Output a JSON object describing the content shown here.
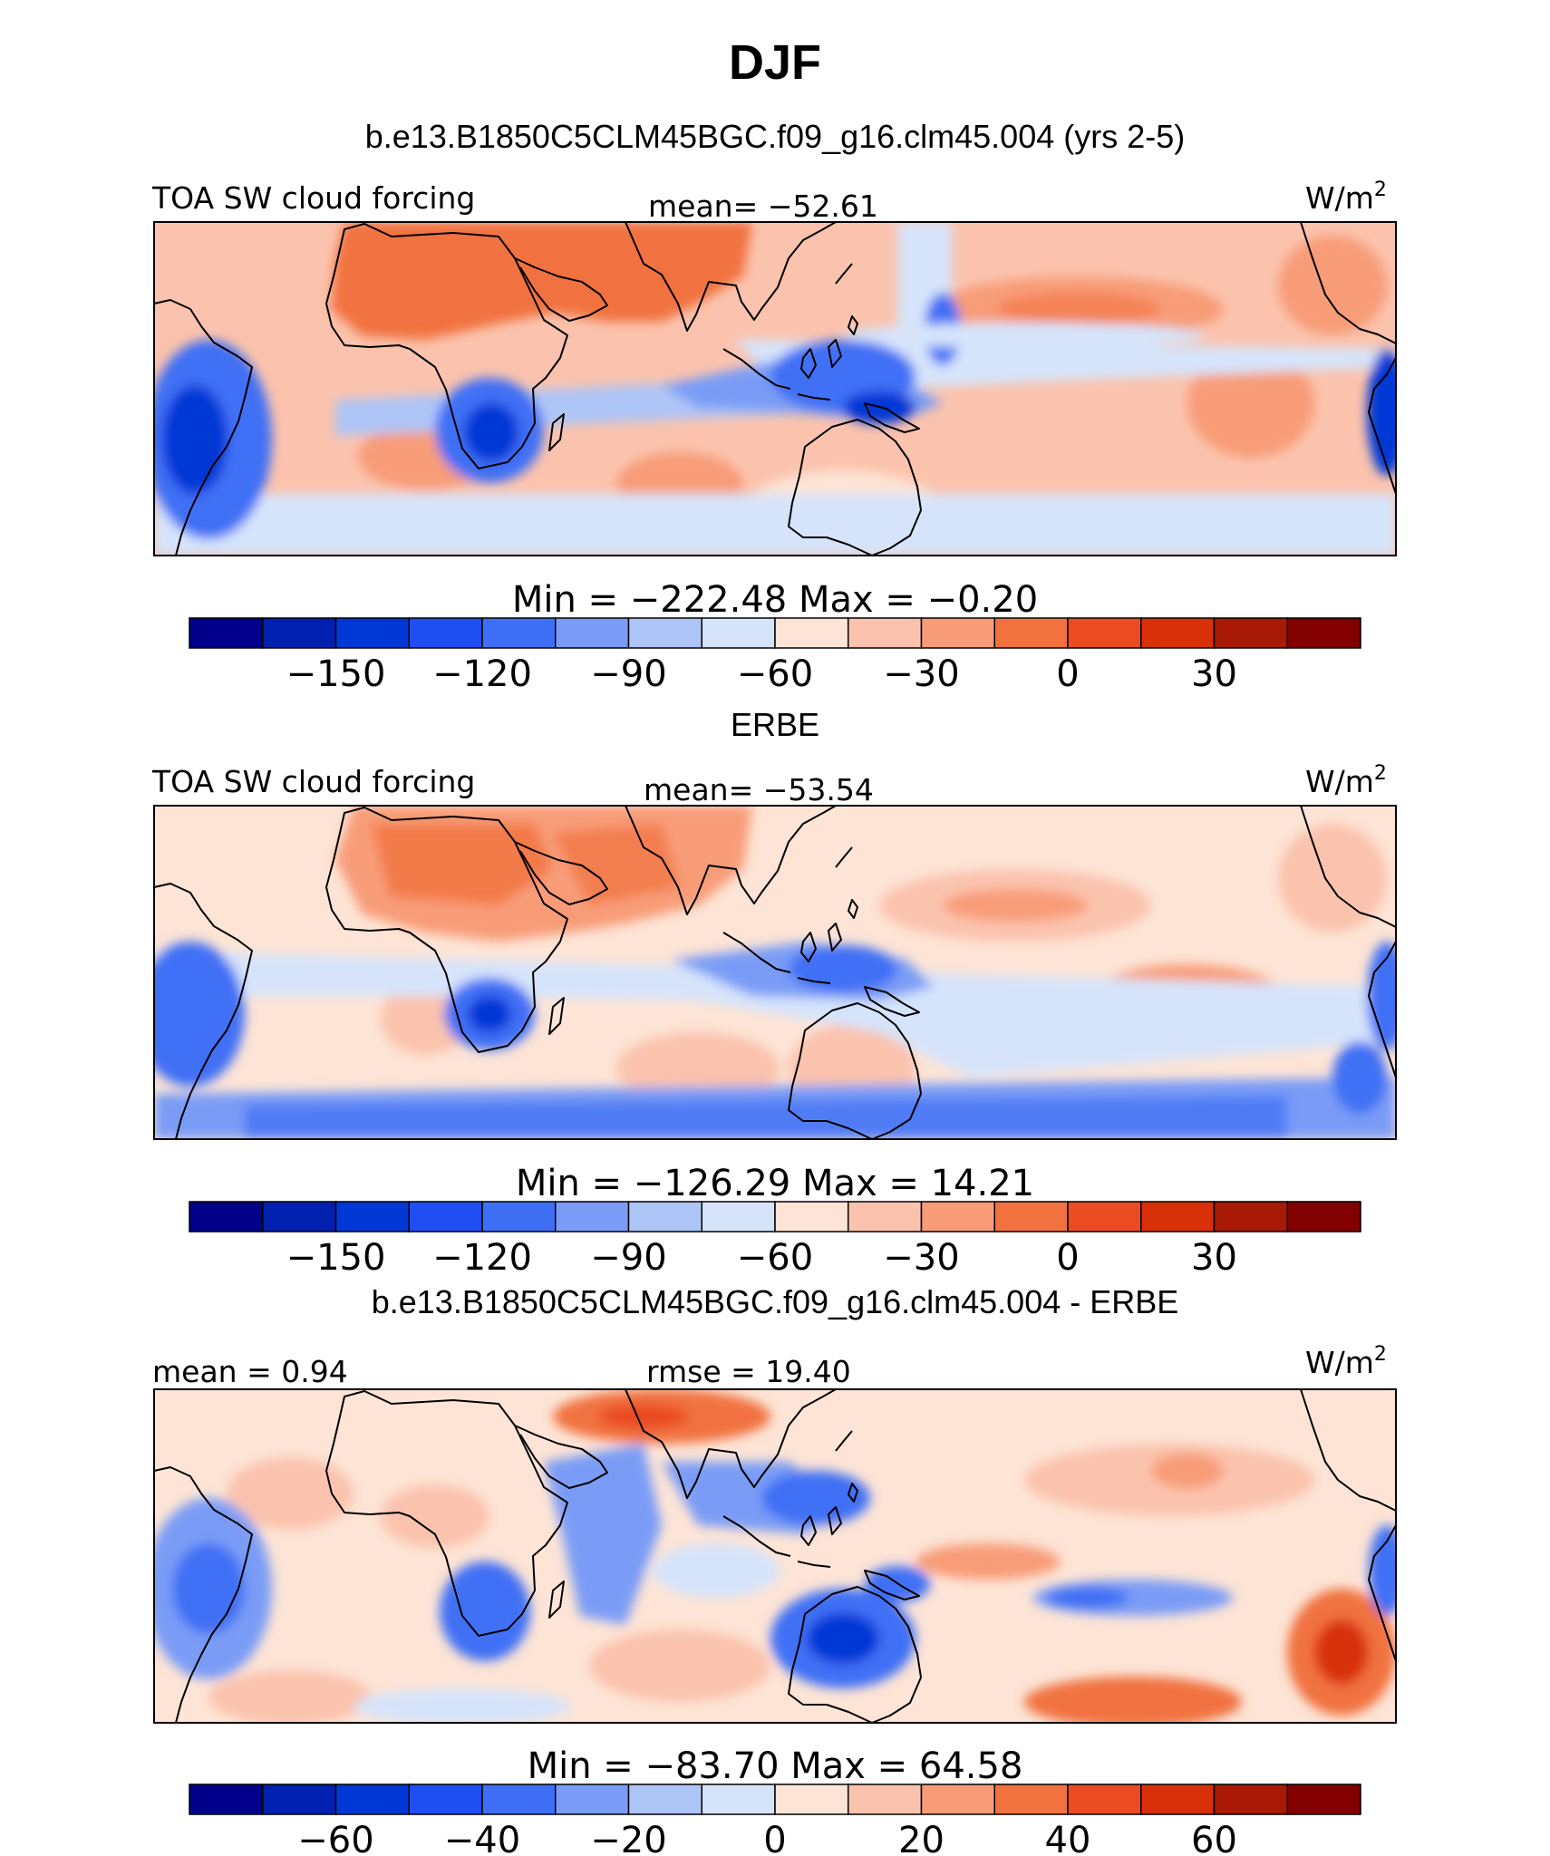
{
  "figure": {
    "season": "DJF",
    "units": "W/m",
    "units_superscript": "2"
  },
  "panels": [
    {
      "id": "model",
      "heading": "b.e13.B1850C5CLM45BGC.f09_g16.clm45.004 (yrs 2-5)",
      "left_label": "TOA SW cloud forcing",
      "center_label": "mean= −52.61",
      "minmax": "Min = −222.48 Max =  −0.20"
    },
    {
      "id": "obs",
      "heading": "ERBE",
      "left_label": "TOA SW cloud forcing",
      "center_label": "mean= −53.54",
      "minmax": "Min = −126.29 Max =  14.21"
    },
    {
      "id": "diff",
      "heading": "b.e13.B1850C5CLM45BGC.f09_g16.clm45.004 - ERBE",
      "left_label": "mean =   0.94",
      "center_label": "rmse =  19.40",
      "minmax": "Min = −83.70 Max =  64.58"
    }
  ],
  "colorbars": [
    {
      "colors": [
        "#00008b",
        "#0020b0",
        "#0038d6",
        "#1f4ef3",
        "#3f6ff5",
        "#7a9cf6",
        "#aec5f7",
        "#d6e4fb",
        "#fde4d6",
        "#fbc3ad",
        "#f89c78",
        "#f1723f",
        "#ea4b20",
        "#d83009",
        "#a81a05",
        "#820000"
      ],
      "ticks": [
        {
          "boundary": 2,
          "label": "−150"
        },
        {
          "boundary": 4,
          "label": "−120"
        },
        {
          "boundary": 6,
          "label": "−90"
        },
        {
          "boundary": 8,
          "label": "−60"
        },
        {
          "boundary": 10,
          "label": "−30"
        },
        {
          "boundary": 12,
          "label": "0"
        },
        {
          "boundary": 14,
          "label": "30"
        }
      ]
    },
    {
      "colors": [
        "#00008b",
        "#0020b0",
        "#0038d6",
        "#1f4ef3",
        "#3f6ff5",
        "#7a9cf6",
        "#aec5f7",
        "#d6e4fb",
        "#fde4d6",
        "#fbc3ad",
        "#f89c78",
        "#f1723f",
        "#ea4b20",
        "#d83009",
        "#a81a05",
        "#820000"
      ],
      "ticks": [
        {
          "boundary": 2,
          "label": "−150"
        },
        {
          "boundary": 4,
          "label": "−120"
        },
        {
          "boundary": 6,
          "label": "−90"
        },
        {
          "boundary": 8,
          "label": "−60"
        },
        {
          "boundary": 10,
          "label": "−30"
        },
        {
          "boundary": 12,
          "label": "0"
        },
        {
          "boundary": 14,
          "label": "30"
        }
      ]
    },
    {
      "colors": [
        "#00008b",
        "#0020b0",
        "#0038d6",
        "#1f4ef3",
        "#3f6ff5",
        "#7a9cf6",
        "#aec5f7",
        "#d6e4fb",
        "#fde4d6",
        "#fbc3ad",
        "#f89c78",
        "#f1723f",
        "#ea4b20",
        "#d83009",
        "#a81a05",
        "#820000"
      ],
      "ticks": [
        {
          "boundary": 2,
          "label": "−60"
        },
        {
          "boundary": 4,
          "label": "−40"
        },
        {
          "boundary": 6,
          "label": "−20"
        },
        {
          "boundary": 8,
          "label": "0"
        },
        {
          "boundary": 10,
          "label": "20"
        },
        {
          "boundary": 12,
          "label": "40"
        },
        {
          "boundary": 14,
          "label": "60"
        }
      ]
    }
  ],
  "colors": {
    "positive_strong": "#f1723f",
    "positive_weak": "#fbc3ad",
    "negative_weak": "#aec5f7",
    "negative_strong": "#1f4ef3"
  }
}
